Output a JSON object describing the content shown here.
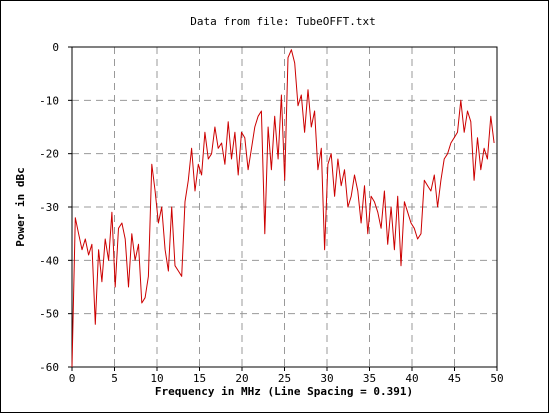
{
  "chart_data": {
    "type": "line",
    "title": "Data from file: TubeOFFT.txt",
    "xlabel": "Frequency in MHz (Line Spacing = 0.391)",
    "ylabel": "Power in dBc",
    "xlim": [
      0,
      50
    ],
    "ylim": [
      -60,
      0
    ],
    "x_ticks": [
      0,
      5,
      10,
      15,
      20,
      25,
      30,
      35,
      40,
      45,
      50
    ],
    "y_ticks": [
      0,
      -10,
      -20,
      -30,
      -40,
      -50,
      -60
    ],
    "grid": true,
    "line_color": "#cc0000",
    "series": [
      {
        "x": [
          0.0,
          0.391,
          0.782,
          1.173,
          1.564,
          1.955,
          2.346,
          2.737,
          3.128,
          3.519,
          3.91,
          4.301,
          4.692,
          5.083,
          5.474,
          5.865,
          6.256,
          6.647,
          7.038,
          7.429,
          7.82,
          8.211,
          8.602,
          8.993,
          9.384,
          9.775,
          10.166,
          10.557,
          10.948,
          11.339,
          11.73,
          12.121,
          12.512,
          12.903,
          13.294,
          13.685,
          14.076,
          14.467,
          14.858,
          15.249,
          15.64,
          16.031,
          16.422,
          16.813,
          17.204,
          17.595,
          17.986,
          18.377,
          18.768,
          19.159,
          19.55,
          19.941,
          20.332,
          20.723,
          21.114,
          21.505,
          21.896,
          22.287,
          22.678,
          23.069,
          23.46,
          23.851,
          24.242,
          24.633,
          25.024,
          25.415,
          25.806,
          26.197,
          26.588,
          26.979,
          27.37,
          27.761,
          28.152,
          28.543,
          28.934,
          29.325,
          29.716,
          30.107,
          30.498,
          30.889,
          31.28,
          31.671,
          32.062,
          32.453,
          32.844,
          33.235,
          33.626,
          34.017,
          34.408,
          34.799,
          35.19,
          35.581,
          35.972,
          36.363,
          36.754,
          37.145,
          37.536,
          37.927,
          38.318,
          38.709,
          39.1,
          39.491,
          39.882,
          40.273,
          40.664,
          41.055,
          41.446,
          41.837,
          42.228,
          42.619,
          43.01,
          43.401,
          43.792,
          44.183,
          44.574,
          44.965,
          45.356,
          45.747,
          46.138,
          46.529,
          46.92,
          47.311,
          47.702,
          48.093,
          48.484,
          48.875,
          49.266,
          49.657
        ],
        "values": [
          -60,
          -32,
          -35,
          -38,
          -36,
          -39,
          -37,
          -52,
          -38,
          -44,
          -36,
          -40,
          -31,
          -45,
          -34,
          -33,
          -36,
          -45,
          -35,
          -40,
          -37,
          -48,
          -47,
          -43,
          -22,
          -27,
          -33,
          -30,
          -38,
          -42,
          -30,
          -41,
          -42,
          -43,
          -29,
          -25,
          -19,
          -27,
          -22,
          -24,
          -16,
          -21,
          -20,
          -15,
          -19,
          -18,
          -22,
          -14,
          -21,
          -16,
          -24,
          -16,
          -17,
          -23,
          -19,
          -15,
          -13,
          -12,
          -35,
          -15,
          -23,
          -13,
          -21,
          -9,
          -25,
          -2,
          -0.5,
          -3,
          -11,
          -9,
          -16,
          -8,
          -15,
          -12,
          -23,
          -19,
          -38,
          -22,
          -20,
          -28,
          -21,
          -26,
          -23,
          -30,
          -28,
          -24,
          -27,
          -33,
          -26,
          -35,
          -28,
          -29,
          -31,
          -34,
          -27,
          -37,
          -30,
          -38,
          -28,
          -41,
          -29,
          -31,
          -33,
          -34,
          -36,
          -35,
          -25,
          -26,
          -27,
          -24,
          -30,
          -25,
          -21,
          -20,
          -18,
          -17,
          -16,
          -10,
          -16,
          -12,
          -14,
          -25,
          -17,
          -23,
          -19,
          -21,
          -13,
          -18
        ]
      }
    ]
  }
}
